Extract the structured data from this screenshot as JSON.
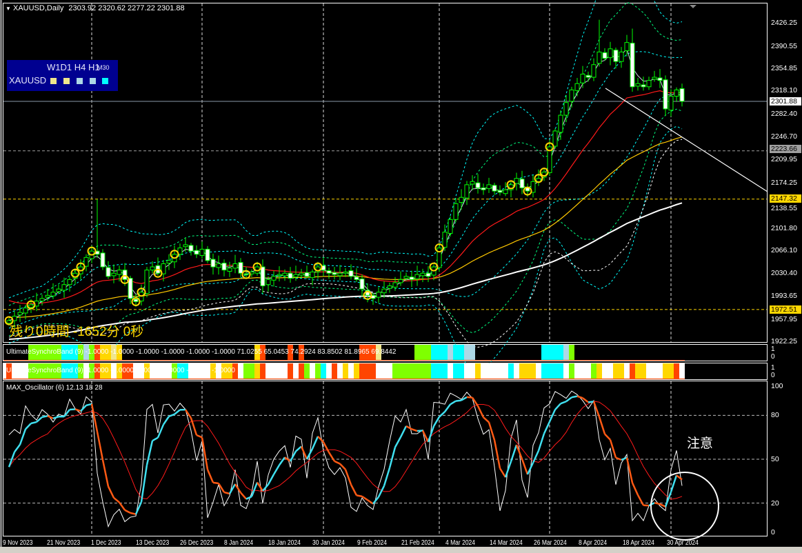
{
  "header": {
    "symbol_timeframe": "XAUUSD,Daily",
    "ohlc": "2303.92 2320.62 2277.22 2301.88"
  },
  "info_panel": {
    "timeframes": "W1D1 H4 H1",
    "timeframe_small": "M30",
    "symbol": "XAUUSD",
    "status_colors": [
      "#f0e68c",
      "#f0e68c",
      "#add8e6",
      "#add8e6",
      "#00ffff"
    ]
  },
  "countdown": "残り0時間 -1652分 0秒",
  "price_axis": {
    "ticks": [
      "2426.25",
      "2390.55",
      "2354.85",
      "2318.10",
      "2282.40",
      "2246.70",
      "2209.95",
      "2174.25",
      "2138.55",
      "2101.80",
      "2066.10",
      "2030.40",
      "1993.65",
      "1957.95",
      "1922.25"
    ],
    "current_price": "2301.88",
    "levels": [
      {
        "label": "2223.66",
        "color": "#a0a0a0"
      },
      {
        "label": "2147.32",
        "color": "#ffd700"
      },
      {
        "label": "1972.51",
        "color": "#ffd700"
      }
    ]
  },
  "date_axis": [
    "9 Nov 2023",
    "21 Nov 2023",
    "1 Dec 2023",
    "13 Dec 2023",
    "26 Dec 2023",
    "8 Jan 2024",
    "18 Jan 2024",
    "30 Jan 2024",
    "9 Feb 2024",
    "21 Feb 2024",
    "4 Mar 2024",
    "14 Mar 2024",
    "26 Mar 2024",
    "8 Apr 2024",
    "18 Apr 2024",
    "30 Apr 2024"
  ],
  "band1": {
    "label": "UltimateSynchroBand (9) -1.0000 -1.0000 -1.0000 -1.0000 -1.0000 -1.0000 71.0255 65.0453 74.2924 83.8502 81.8965 69.8442",
    "scale": [
      "1",
      "0"
    ],
    "segments": [
      [
        4,
        10,
        "#7fff00"
      ],
      [
        10,
        13,
        "#00ffff"
      ],
      [
        13,
        14,
        "#7fff00"
      ],
      [
        14,
        15,
        "#add8e6"
      ],
      [
        15,
        16,
        "#7fff00"
      ],
      [
        16,
        17,
        "#ff4500"
      ],
      [
        17,
        19,
        "#ffd700"
      ],
      [
        19,
        20,
        "#f0e68c"
      ],
      [
        20,
        21,
        "#ffd700"
      ],
      [
        45,
        46,
        "#ffd700"
      ],
      [
        46,
        47,
        "#ff4500"
      ],
      [
        51,
        52,
        "#ff4500"
      ],
      [
        53,
        54,
        "#ff4500"
      ],
      [
        64,
        67,
        "#ff4500"
      ],
      [
        67,
        68,
        "#f0e68c"
      ],
      [
        74,
        77,
        "#7fff00"
      ],
      [
        77,
        80,
        "#00ffff"
      ],
      [
        80,
        81,
        "#add8e6"
      ],
      [
        81,
        83,
        "#00ffff"
      ],
      [
        83,
        85,
        "#add8e6"
      ],
      [
        97,
        101,
        "#00ffff"
      ],
      [
        101,
        102,
        "#add8e6"
      ],
      [
        102,
        103,
        "#7fff00"
      ]
    ]
  },
  "band2": {
    "label": "UltimateSynchroBand (9) -1.0000 -1.0000 -1.0000 -1.0000 -1.0000 -1.0000",
    "scale": [
      "1",
      "0"
    ],
    "segments": [
      [
        0,
        1,
        "#ff4500"
      ],
      [
        4,
        10,
        "#7fff00"
      ],
      [
        10,
        13,
        "#00ffff"
      ],
      [
        13,
        14,
        "#7fff00"
      ],
      [
        15,
        16,
        "#7fff00"
      ],
      [
        16,
        17,
        "#ff4500"
      ],
      [
        17,
        19,
        "#ffd700"
      ],
      [
        20,
        21,
        "#ffd700"
      ],
      [
        21,
        23,
        "#ff4500"
      ],
      [
        25,
        26,
        "#ffd700"
      ],
      [
        30,
        31,
        "#7fff00"
      ],
      [
        31,
        33,
        "#00ffff"
      ],
      [
        37,
        38,
        "#ffd700"
      ],
      [
        39,
        41,
        "#ffd700"
      ],
      [
        41,
        42,
        "#ff4500"
      ],
      [
        43,
        45,
        "#7fff00"
      ],
      [
        45,
        46,
        "#ffd700"
      ],
      [
        46,
        47,
        "#ff4500"
      ],
      [
        51,
        52,
        "#ff4500"
      ],
      [
        53,
        54,
        "#ff4500"
      ],
      [
        54,
        55,
        "#7fff00"
      ],
      [
        56,
        57,
        "#7fff00"
      ],
      [
        57,
        58,
        "#00ffff"
      ],
      [
        59,
        60,
        "#ff4500"
      ],
      [
        61,
        62,
        "#ffd700"
      ],
      [
        63,
        64,
        "#ffd700"
      ],
      [
        64,
        67,
        "#ff4500"
      ],
      [
        70,
        77,
        "#7fff00"
      ],
      [
        77,
        80,
        "#00ffff"
      ],
      [
        81,
        83,
        "#00ffff"
      ],
      [
        85,
        86,
        "#ffd700"
      ],
      [
        91,
        92,
        "#00ffff"
      ],
      [
        93,
        96,
        "#ffd700"
      ],
      [
        97,
        101,
        "#00ffff"
      ],
      [
        102,
        103,
        "#7fff00"
      ],
      [
        106,
        107,
        "#7fff00"
      ],
      [
        107,
        108,
        "#ffd700"
      ],
      [
        110,
        112,
        "#ffd700"
      ],
      [
        113,
        114,
        "#ff4500"
      ],
      [
        114,
        116,
        "#ffd700"
      ],
      [
        119,
        121,
        "#ffd700"
      ],
      [
        121,
        122,
        "#ff4500"
      ]
    ]
  },
  "oscillator": {
    "label": "MAX_Oscillator (6) 12.13 18 28",
    "levels": [
      "100",
      "80",
      "50",
      "20",
      "0"
    ],
    "note": "注意"
  },
  "chart_data": {
    "type": "candlestick",
    "closes": [
      1955,
      1962,
      1968,
      1975,
      1980,
      1986,
      1990,
      1995,
      2000,
      2005,
      2012,
      2020,
      2030,
      2040,
      2055,
      2065,
      2060,
      2040,
      2025,
      2030,
      2035,
      2020,
      1990,
      1985,
      2000,
      2035,
      2040,
      2030,
      2045,
      2050,
      2060,
      2070,
      2075,
      2065,
      2060,
      2068,
      2050,
      2040,
      2045,
      2035,
      2038,
      2045,
      2030,
      2028,
      2032,
      2040,
      2010,
      2020,
      2025,
      2028,
      2030,
      2022,
      2028,
      2030,
      2025,
      2032,
      2040,
      2035,
      2030,
      2028,
      2030,
      2032,
      2025,
      2020,
      2005,
      1995,
      1990,
      2000,
      2005,
      2010,
      2015,
      2020,
      2025,
      2020,
      2028,
      2030,
      2025,
      2040,
      2070,
      2095,
      2115,
      2140,
      2150,
      2170,
      2175,
      2165,
      2162,
      2170,
      2160,
      2158,
      2162,
      2170,
      2180,
      2165,
      2160,
      2175,
      2180,
      2190,
      2230,
      2255,
      2280,
      2300,
      2320,
      2330,
      2345,
      2340,
      2360,
      2380,
      2370,
      2385,
      2365,
      2380,
      2395,
      2325,
      2330,
      2325,
      2335,
      2340,
      2335,
      2290,
      2310,
      2320,
      2301.88
    ],
    "high_overrides": {
      "16": 2147,
      "107": 2431,
      "113": 2417
    },
    "signal_bars": [
      0,
      4,
      12,
      13,
      15,
      21,
      23,
      24,
      27,
      30,
      43,
      45,
      56,
      65,
      77,
      78,
      91,
      94,
      96,
      97,
      98
    ]
  }
}
